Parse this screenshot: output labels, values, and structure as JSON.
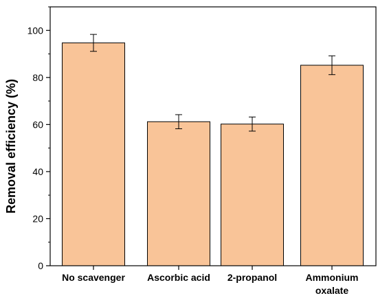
{
  "chart_data": {
    "type": "bar",
    "categories": [
      "No scavenger",
      "Ascorbic acid",
      "2-propanol",
      "Ammonium oxalate"
    ],
    "category_lines": [
      [
        "No scavenger"
      ],
      [
        "Ascorbic acid"
      ],
      [
        "2-propanol"
      ],
      [
        "Ammonium",
        "oxalate"
      ]
    ],
    "values": [
      94.7,
      61.2,
      60.2,
      85.2
    ],
    "errors": [
      3.6,
      3.0,
      3.0,
      4.0
    ],
    "title": "",
    "xlabel": "",
    "ylabel": "Removal efficiency  (%)",
    "ylim": [
      0,
      110
    ],
    "yticks": [
      0,
      20,
      40,
      60,
      80,
      100
    ],
    "grid": false,
    "colors": {
      "bar_fill": "#f9c498",
      "bar_stroke": "#000000",
      "axis": "#000000"
    }
  }
}
